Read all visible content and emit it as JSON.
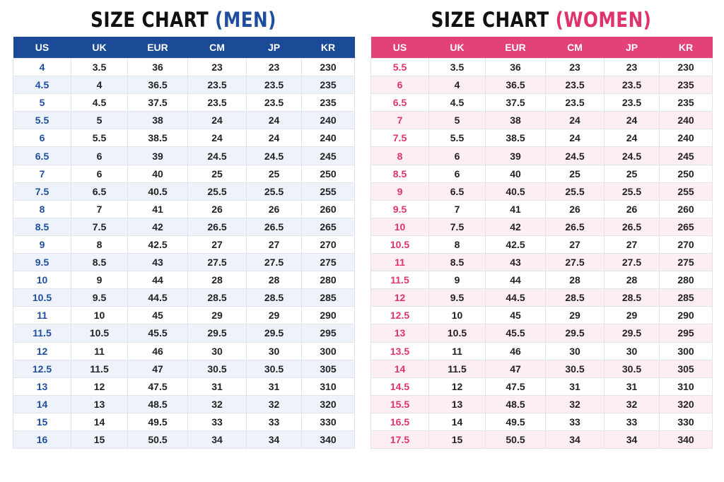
{
  "charts": [
    {
      "title": "SIZE CHART",
      "subtitle": "(MEN)",
      "columns": [
        "US",
        "UK",
        "EUR",
        "CM",
        "JP",
        "KR"
      ],
      "rows": [
        [
          "4",
          "3.5",
          "36",
          "23",
          "23",
          "230"
        ],
        [
          "4.5",
          "4",
          "36.5",
          "23.5",
          "23.5",
          "235"
        ],
        [
          "5",
          "4.5",
          "37.5",
          "23.5",
          "23.5",
          "235"
        ],
        [
          "5.5",
          "5",
          "38",
          "24",
          "24",
          "240"
        ],
        [
          "6",
          "5.5",
          "38.5",
          "24",
          "24",
          "240"
        ],
        [
          "6.5",
          "6",
          "39",
          "24.5",
          "24.5",
          "245"
        ],
        [
          "7",
          "6",
          "40",
          "25",
          "25",
          "250"
        ],
        [
          "7.5",
          "6.5",
          "40.5",
          "25.5",
          "25.5",
          "255"
        ],
        [
          "8",
          "7",
          "41",
          "26",
          "26",
          "260"
        ],
        [
          "8.5",
          "7.5",
          "42",
          "26.5",
          "26.5",
          "265"
        ],
        [
          "9",
          "8",
          "42.5",
          "27",
          "27",
          "270"
        ],
        [
          "9.5",
          "8.5",
          "43",
          "27.5",
          "27.5",
          "275"
        ],
        [
          "10",
          "9",
          "44",
          "28",
          "28",
          "280"
        ],
        [
          "10.5",
          "9.5",
          "44.5",
          "28.5",
          "28.5",
          "285"
        ],
        [
          "11",
          "10",
          "45",
          "29",
          "29",
          "290"
        ],
        [
          "11.5",
          "10.5",
          "45.5",
          "29.5",
          "29.5",
          "295"
        ],
        [
          "12",
          "11",
          "46",
          "30",
          "30",
          "300"
        ],
        [
          "12.5",
          "11.5",
          "47",
          "30.5",
          "30.5",
          "305"
        ],
        [
          "13",
          "12",
          "47.5",
          "31",
          "31",
          "310"
        ],
        [
          "14",
          "13",
          "48.5",
          "32",
          "32",
          "320"
        ],
        [
          "15",
          "14",
          "49.5",
          "33",
          "33",
          "330"
        ],
        [
          "16",
          "15",
          "50.5",
          "34",
          "34",
          "340"
        ]
      ]
    },
    {
      "title": "SIZE CHART",
      "subtitle": "(WOMEN)",
      "columns": [
        "US",
        "UK",
        "EUR",
        "CM",
        "JP",
        "KR"
      ],
      "rows": [
        [
          "5.5",
          "3.5",
          "36",
          "23",
          "23",
          "230"
        ],
        [
          "6",
          "4",
          "36.5",
          "23.5",
          "23.5",
          "235"
        ],
        [
          "6.5",
          "4.5",
          "37.5",
          "23.5",
          "23.5",
          "235"
        ],
        [
          "7",
          "5",
          "38",
          "24",
          "24",
          "240"
        ],
        [
          "7.5",
          "5.5",
          "38.5",
          "24",
          "24",
          "240"
        ],
        [
          "8",
          "6",
          "39",
          "24.5",
          "24.5",
          "245"
        ],
        [
          "8.5",
          "6",
          "40",
          "25",
          "25",
          "250"
        ],
        [
          "9",
          "6.5",
          "40.5",
          "25.5",
          "25.5",
          "255"
        ],
        [
          "9.5",
          "7",
          "41",
          "26",
          "26",
          "260"
        ],
        [
          "10",
          "7.5",
          "42",
          "26.5",
          "26.5",
          "265"
        ],
        [
          "10.5",
          "8",
          "42.5",
          "27",
          "27",
          "270"
        ],
        [
          "11",
          "8.5",
          "43",
          "27.5",
          "27.5",
          "275"
        ],
        [
          "11.5",
          "9",
          "44",
          "28",
          "28",
          "280"
        ],
        [
          "12",
          "9.5",
          "44.5",
          "28.5",
          "28.5",
          "285"
        ],
        [
          "12.5",
          "10",
          "45",
          "29",
          "29",
          "290"
        ],
        [
          "13",
          "10.5",
          "45.5",
          "29.5",
          "29.5",
          "295"
        ],
        [
          "13.5",
          "11",
          "46",
          "30",
          "30",
          "300"
        ],
        [
          "14",
          "11.5",
          "47",
          "30.5",
          "30.5",
          "305"
        ],
        [
          "14.5",
          "12",
          "47.5",
          "31",
          "31",
          "310"
        ],
        [
          "15.5",
          "13",
          "48.5",
          "32",
          "32",
          "320"
        ],
        [
          "16.5",
          "14",
          "49.5",
          "33",
          "33",
          "330"
        ],
        [
          "17.5",
          "15",
          "50.5",
          "34",
          "34",
          "340"
        ]
      ]
    }
  ]
}
